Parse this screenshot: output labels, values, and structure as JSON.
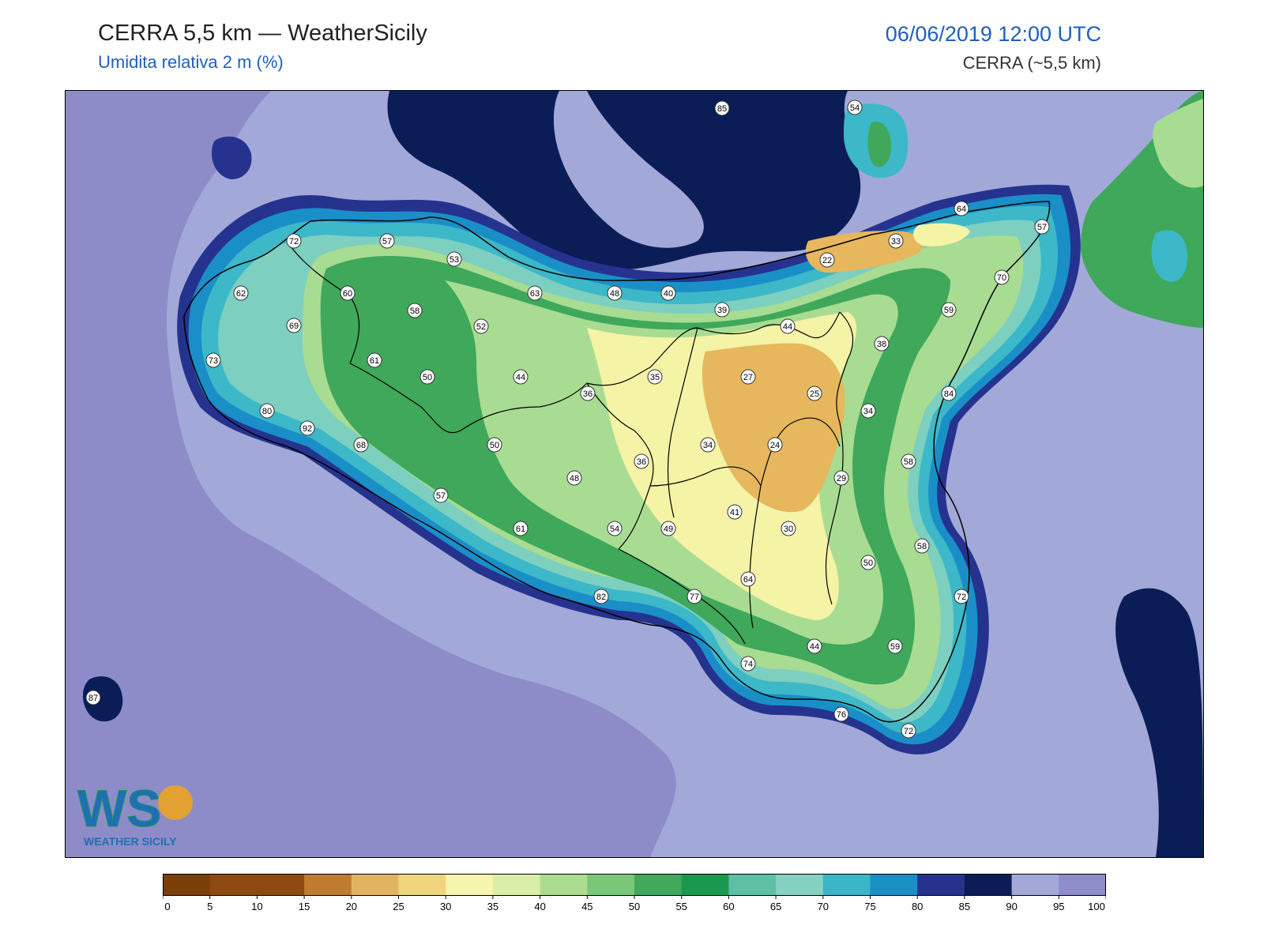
{
  "header": {
    "title": "CERRA 5,5 km — WeatherSicily",
    "subtitle": "Umidita relativa 2 m (%)",
    "datetime": "06/06/2019 12:00 UTC",
    "model": "CERRA (~5,5 km)"
  },
  "logo": {
    "letters": "WS",
    "text": "WEATHER SICILY"
  },
  "colors": {
    "sea_light": "#a2a9d8",
    "sea_mid": "#8d8cc9",
    "sea_dark": "#0b1d56",
    "navy": "#25338f",
    "coast_blue": "#1a8fc7",
    "teal": "#3cb8c8",
    "aqua": "#7dcfc0",
    "green_light": "#a8dc92",
    "green": "#3fa85a",
    "green_dark": "#1a9850",
    "yellow": "#f4f3a6",
    "tan": "#e6b75d"
  },
  "colorbar": {
    "ticks": [
      "0",
      "5",
      "10",
      "15",
      "20",
      "25",
      "30",
      "35",
      "40",
      "45",
      "50",
      "55",
      "60",
      "65",
      "70",
      "75",
      "80",
      "85",
      "90",
      "95",
      "100"
    ],
    "colors": [
      "#7b3f0a",
      "#8c4a10",
      "#8c4a10",
      "#bf7c30",
      "#e2b461",
      "#f1d57e",
      "#f6f4ae",
      "#d9efa7",
      "#acdc90",
      "#79c779",
      "#41a85c",
      "#1a9850",
      "#5dbfa4",
      "#86d1c2",
      "#3ab6c8",
      "#1b8ec3",
      "#26338d",
      "#0c1d56",
      "#a2a9d8",
      "#8e8cca"
    ]
  },
  "stations": [
    {
      "v": "85"
    },
    {
      "v": "54"
    },
    {
      "v": "72"
    },
    {
      "v": "57"
    },
    {
      "v": "53"
    },
    {
      "v": "64"
    },
    {
      "v": "57"
    },
    {
      "v": "33"
    },
    {
      "v": "22"
    },
    {
      "v": "62"
    },
    {
      "v": "60"
    },
    {
      "v": "63"
    },
    {
      "v": "48"
    },
    {
      "v": "40"
    },
    {
      "v": "70"
    },
    {
      "v": "69"
    },
    {
      "v": "58"
    },
    {
      "v": "52"
    },
    {
      "v": "39"
    },
    {
      "v": "44"
    },
    {
      "v": "59"
    },
    {
      "v": "38"
    },
    {
      "v": "73"
    },
    {
      "v": "61"
    },
    {
      "v": "50"
    },
    {
      "v": "44"
    },
    {
      "v": "35"
    },
    {
      "v": "27"
    },
    {
      "v": "36"
    },
    {
      "v": "25"
    },
    {
      "v": "84"
    },
    {
      "v": "34"
    },
    {
      "v": "80"
    },
    {
      "v": "92"
    },
    {
      "v": "68"
    },
    {
      "v": "50"
    },
    {
      "v": "34"
    },
    {
      "v": "24"
    },
    {
      "v": "36"
    },
    {
      "v": "58"
    },
    {
      "v": "48"
    },
    {
      "v": "29"
    },
    {
      "v": "57"
    },
    {
      "v": "41"
    },
    {
      "v": "61"
    },
    {
      "v": "54"
    },
    {
      "v": "49"
    },
    {
      "v": "30"
    },
    {
      "v": "58"
    },
    {
      "v": "50"
    },
    {
      "v": "64"
    },
    {
      "v": "72"
    },
    {
      "v": "82"
    },
    {
      "v": "77"
    },
    {
      "v": "44"
    },
    {
      "v": "59"
    },
    {
      "v": "74"
    },
    {
      "v": "87"
    },
    {
      "v": "76"
    },
    {
      "v": "72"
    }
  ]
}
